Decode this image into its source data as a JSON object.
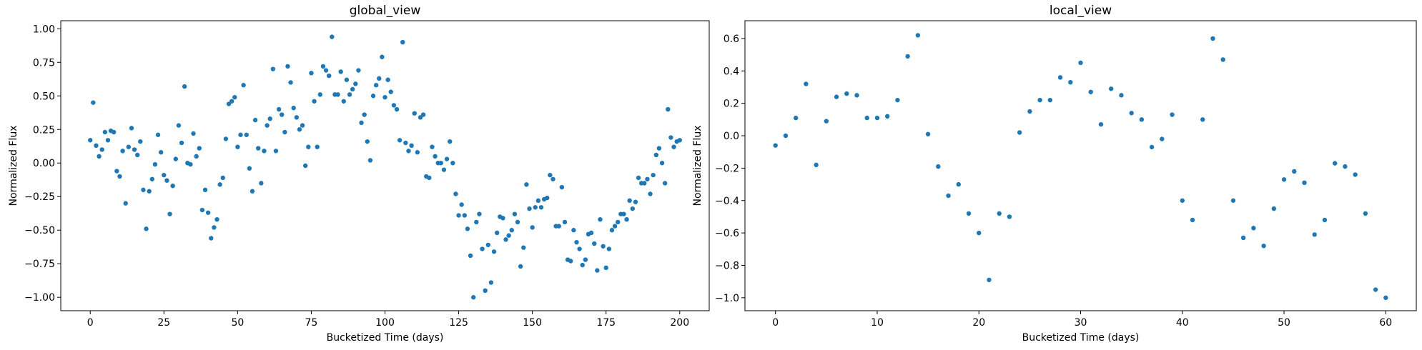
{
  "chart_data": [
    {
      "type": "scatter",
      "title": "global_view",
      "x_label": "Bucketized Time (days)",
      "y_label": "Normalized Flux",
      "x": [
        0,
        1,
        2,
        3,
        4,
        5,
        6,
        7,
        8,
        9,
        10,
        11,
        12,
        13,
        14,
        15,
        16,
        17,
        18,
        19,
        20,
        21,
        22,
        23,
        24,
        25,
        26,
        27,
        28,
        29,
        30,
        31,
        32,
        33,
        34,
        35,
        36,
        37,
        38,
        39,
        40,
        41,
        42,
        43,
        44,
        45,
        46,
        47,
        48,
        49,
        50,
        51,
        52,
        53,
        54,
        55,
        56,
        57,
        58,
        59,
        60,
        61,
        62,
        63,
        64,
        65,
        66,
        67,
        68,
        69,
        70,
        71,
        72,
        73,
        74,
        75,
        76,
        77,
        78,
        79,
        80,
        81,
        82,
        83,
        84,
        85,
        86,
        87,
        88,
        89,
        90,
        91,
        92,
        93,
        94,
        95,
        96,
        97,
        98,
        99,
        100,
        101,
        102,
        103,
        104,
        105,
        106,
        107,
        108,
        109,
        110,
        111,
        112,
        113,
        114,
        115,
        116,
        117,
        118,
        119,
        120,
        121,
        122,
        123,
        124,
        125,
        126,
        127,
        128,
        129,
        130,
        131,
        132,
        133,
        134,
        135,
        136,
        137,
        138,
        139,
        140,
        141,
        142,
        143,
        144,
        145,
        146,
        147,
        148,
        149,
        150,
        151,
        152,
        153,
        154,
        155,
        156,
        157,
        158,
        159,
        160,
        161,
        162,
        163,
        164,
        165,
        166,
        167,
        168,
        169,
        170,
        171,
        172,
        173,
        174,
        175,
        176,
        177,
        178,
        179,
        180,
        181,
        182,
        183,
        184,
        185,
        186,
        187,
        188,
        189,
        190,
        191,
        192,
        193,
        194,
        195,
        196,
        197,
        198,
        199,
        200
      ],
      "values": [
        0.17,
        0.45,
        0.13,
        0.05,
        0.1,
        0.23,
        0.17,
        0.24,
        0.23,
        -0.06,
        -0.1,
        0.09,
        -0.3,
        0.12,
        0.26,
        0.1,
        0.06,
        0.16,
        -0.2,
        -0.49,
        -0.21,
        -0.12,
        -0.01,
        0.21,
        0.08,
        -0.09,
        -0.13,
        -0.38,
        -0.17,
        0.03,
        0.28,
        0.15,
        0.57,
        0.0,
        -0.01,
        0.22,
        0.05,
        0.11,
        -0.35,
        -0.2,
        -0.37,
        -0.56,
        -0.48,
        -0.42,
        -0.16,
        -0.11,
        0.18,
        0.44,
        0.46,
        0.49,
        0.12,
        0.21,
        0.58,
        0.21,
        -0.04,
        -0.21,
        0.32,
        0.11,
        -0.15,
        0.09,
        0.28,
        0.33,
        0.7,
        0.09,
        0.4,
        0.36,
        0.23,
        0.72,
        0.6,
        0.41,
        0.34,
        0.25,
        0.28,
        -0.02,
        0.12,
        0.67,
        0.46,
        0.12,
        0.51,
        0.72,
        0.69,
        0.65,
        0.94,
        0.51,
        0.51,
        0.68,
        0.46,
        0.62,
        0.51,
        0.55,
        0.59,
        0.69,
        0.3,
        0.36,
        0.16,
        0.02,
        0.5,
        0.58,
        0.63,
        0.79,
        0.49,
        0.62,
        0.53,
        0.43,
        0.4,
        0.17,
        0.9,
        0.15,
        0.09,
        0.13,
        0.37,
        0.08,
        0.34,
        0.36,
        -0.1,
        -0.11,
        0.12,
        0.05,
        0.0,
        0.0,
        -0.05,
        0.03,
        0.16,
        0.0,
        -0.23,
        -0.39,
        -0.31,
        -0.39,
        -0.49,
        -0.69,
        -1.0,
        -0.44,
        -0.38,
        -0.64,
        -0.95,
        -0.61,
        -0.89,
        -0.66,
        -0.52,
        -0.4,
        -0.41,
        -0.57,
        -0.54,
        -0.5,
        -0.38,
        -0.44,
        -0.77,
        -0.63,
        -0.16,
        -0.34,
        -0.48,
        -0.33,
        -0.28,
        -0.33,
        -0.27,
        -0.26,
        -0.09,
        -0.12,
        -0.47,
        -0.47,
        -0.18,
        -0.44,
        -0.72,
        -0.73,
        -0.5,
        -0.59,
        -0.64,
        -0.76,
        -0.72,
        -0.53,
        -0.52,
        -0.6,
        -0.8,
        -0.42,
        -0.62,
        -0.78,
        -0.64,
        -0.5,
        -0.47,
        -0.44,
        -0.38,
        -0.38,
        -0.42,
        -0.28,
        -0.34,
        -0.29,
        -0.11,
        -0.15,
        -0.15,
        -0.12,
        -0.23,
        -0.09,
        0.06,
        0.11,
        0.0,
        -0.15,
        0.4,
        0.19,
        0.12,
        0.16,
        0.17
      ],
      "color": "#1f77b4",
      "xlim": [
        -10,
        210
      ],
      "xticks": [
        0,
        25,
        50,
        75,
        100,
        125,
        150,
        175,
        200
      ],
      "ylim": [
        -1.1,
        1.06
      ],
      "yticks": [
        {
          "value": -1.0,
          "label": "−1.00"
        },
        {
          "value": -0.75,
          "label": "−0.75"
        },
        {
          "value": -0.5,
          "label": "−0.50"
        },
        {
          "value": -0.25,
          "label": "−0.25"
        },
        {
          "value": 0,
          "label": "0.00"
        },
        {
          "value": 0.25,
          "label": "0.25"
        },
        {
          "value": 0.5,
          "label": "0.50"
        },
        {
          "value": 0.75,
          "label": "0.75"
        },
        {
          "value": 1.0,
          "label": "1.00"
        }
      ]
    },
    {
      "type": "scatter",
      "title": "local_view",
      "x_label": "Bucketized Time (days)",
      "y_label": "Normalized Flux",
      "x": [
        0,
        1,
        2,
        3,
        4,
        5,
        6,
        7,
        8,
        9,
        10,
        11,
        12,
        13,
        14,
        15,
        16,
        17,
        18,
        19,
        20,
        21,
        22,
        23,
        24,
        25,
        26,
        27,
        28,
        29,
        30,
        31,
        32,
        33,
        34,
        35,
        36,
        37,
        38,
        39,
        40,
        41,
        42,
        43,
        44,
        45,
        46,
        47,
        48,
        49,
        50,
        51,
        52,
        53,
        54,
        55,
        56,
        57,
        58,
        59,
        60
      ],
      "values": [
        -0.06,
        0.0,
        0.11,
        0.32,
        -0.18,
        0.09,
        0.24,
        0.26,
        0.25,
        0.11,
        0.11,
        0.12,
        0.22,
        0.49,
        0.62,
        0.01,
        -0.19,
        -0.37,
        -0.3,
        -0.48,
        -0.6,
        -0.89,
        -0.48,
        -0.5,
        0.02,
        0.15,
        0.22,
        0.22,
        0.36,
        0.33,
        0.45,
        0.27,
        0.07,
        0.29,
        0.25,
        0.14,
        0.1,
        -0.07,
        -0.02,
        0.13,
        -0.4,
        -0.52,
        0.1,
        0.6,
        0.47,
        -0.4,
        -0.63,
        -0.57,
        -0.68,
        -0.45,
        -0.27,
        -0.22,
        -0.29,
        -0.61,
        -0.52,
        -0.17,
        -0.19,
        -0.24,
        -0.48,
        -0.95,
        -1.0
      ],
      "color": "#1f77b4",
      "xlim": [
        -3,
        63
      ],
      "xticks": [
        0,
        10,
        20,
        30,
        40,
        50,
        60
      ],
      "ylim": [
        -1.08,
        0.71
      ],
      "yticks": [
        {
          "value": -1.0,
          "label": "−1.0"
        },
        {
          "value": -0.8,
          "label": "−0.8"
        },
        {
          "value": -0.6,
          "label": "−0.6"
        },
        {
          "value": -0.4,
          "label": "−0.4"
        },
        {
          "value": -0.2,
          "label": "−0.2"
        },
        {
          "value": 0,
          "label": "0.0"
        },
        {
          "value": 0.2,
          "label": "0.2"
        },
        {
          "value": 0.4,
          "label": "0.4"
        },
        {
          "value": 0.6,
          "label": "0.6"
        }
      ]
    }
  ]
}
